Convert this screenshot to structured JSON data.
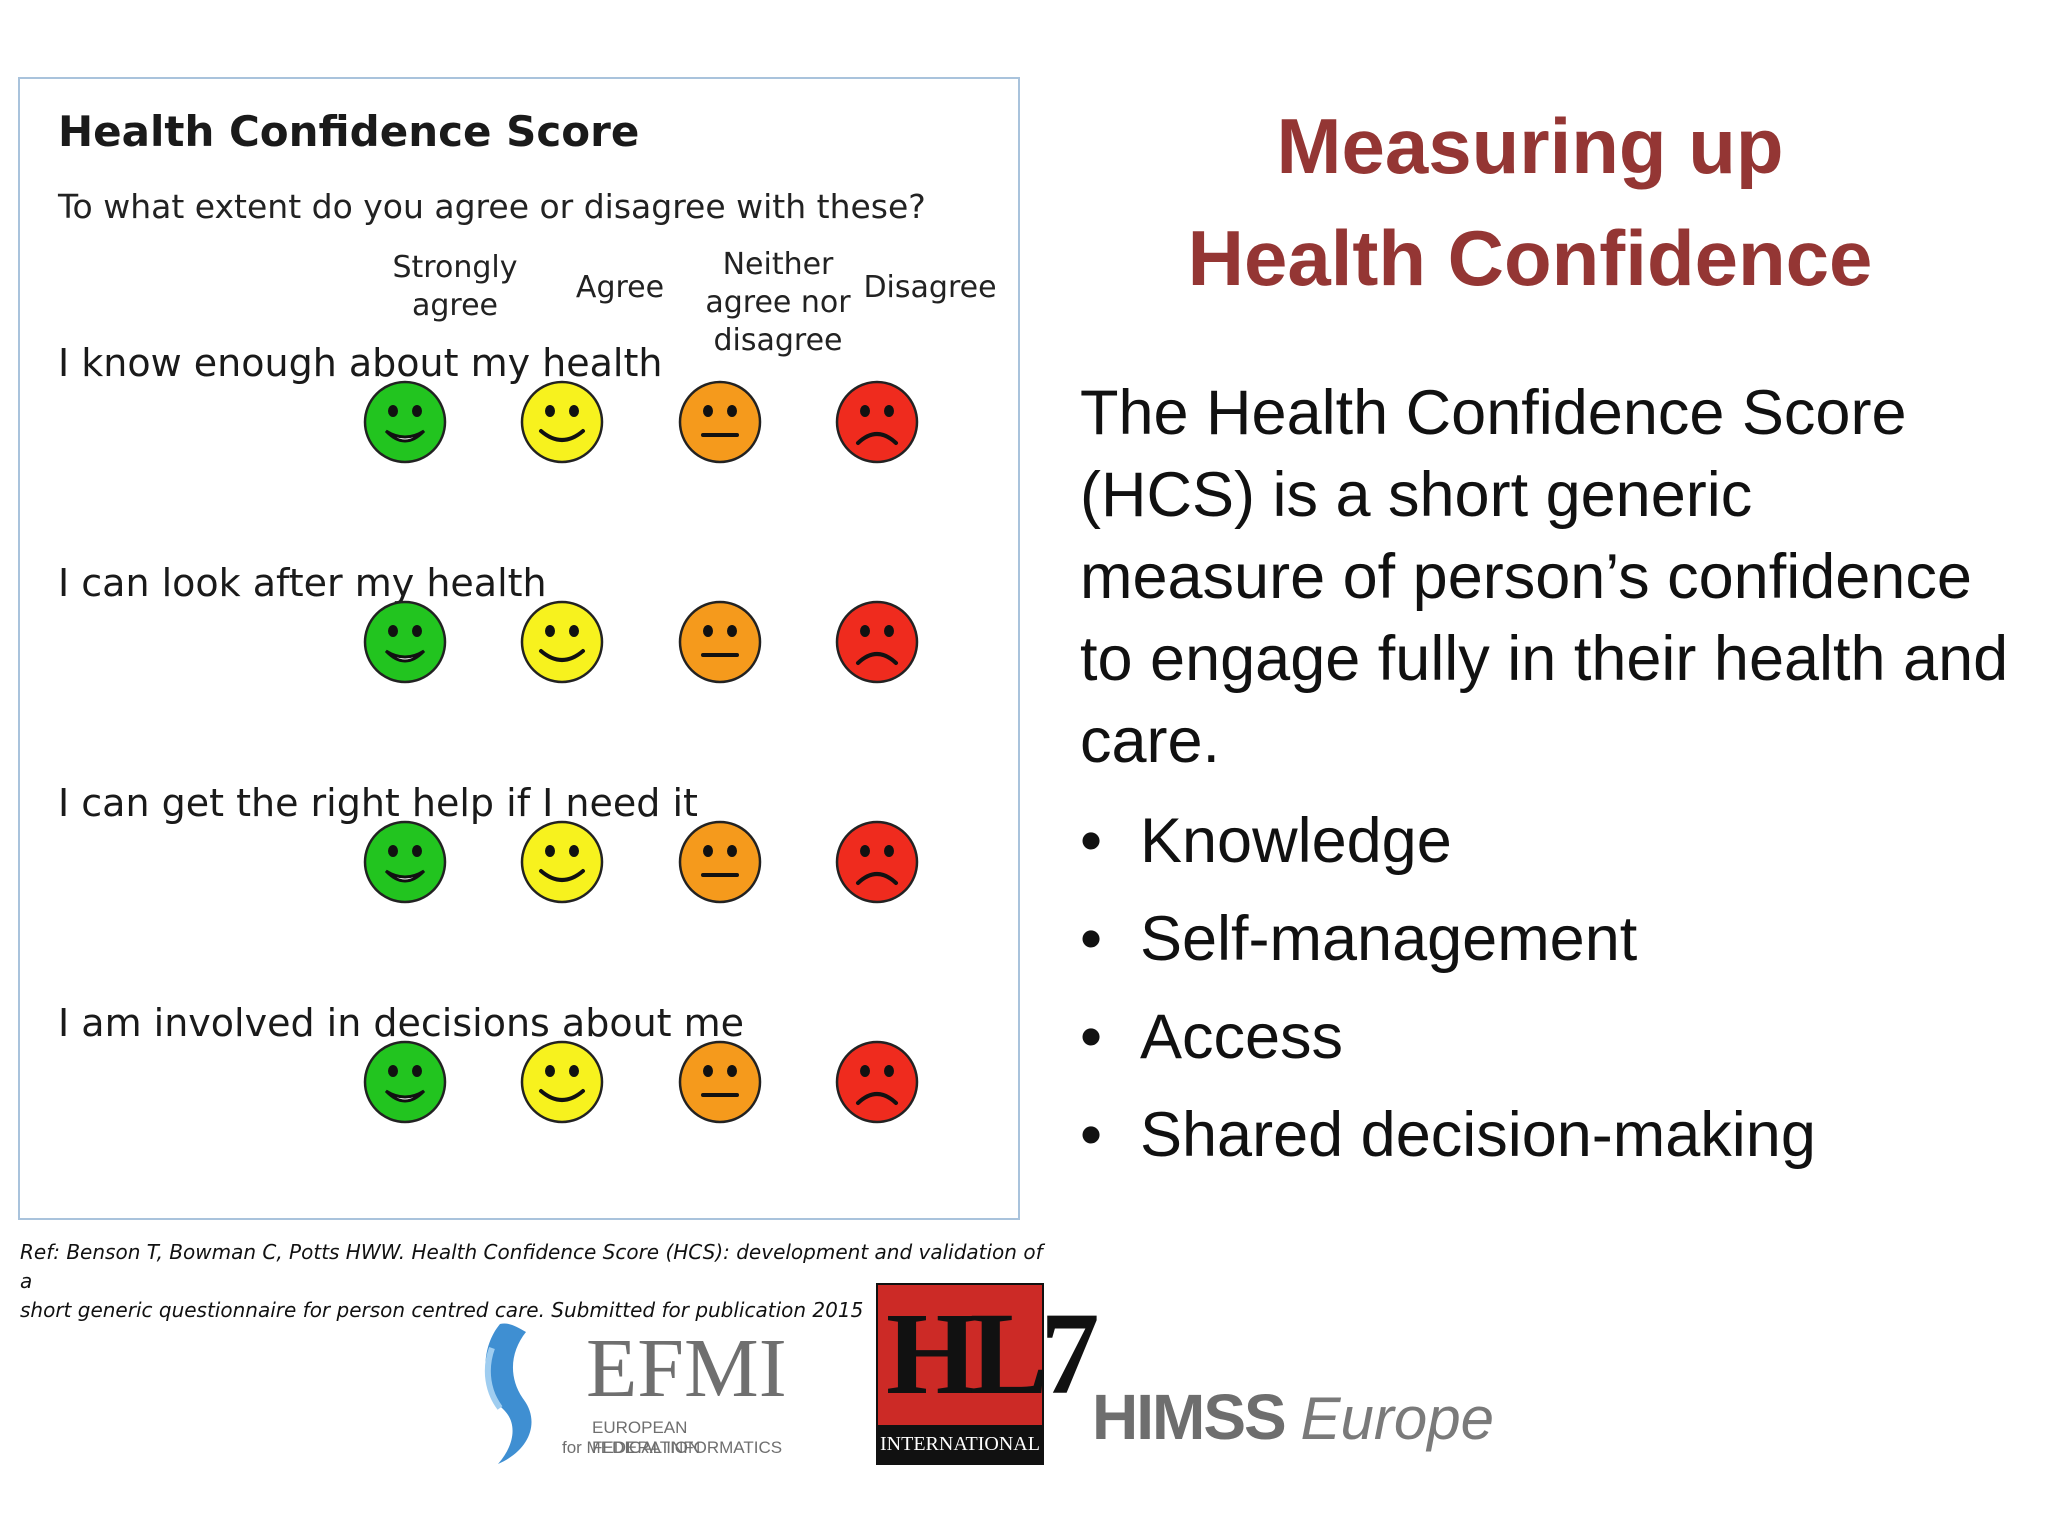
{
  "panel": {
    "title": "Health Confidence Score",
    "question": "To what extent do you agree or disagree with these?",
    "columns": [
      {
        "line1": "Strongly",
        "line2": "agree",
        "line3": ""
      },
      {
        "line1": "Agree",
        "line2": "",
        "line3": ""
      },
      {
        "line1": "Neither",
        "line2": "agree nor",
        "line3": "disagree"
      },
      {
        "line1": "Disagree",
        "line2": "",
        "line3": ""
      }
    ],
    "statements": [
      "I know enough about my health",
      "I can look after my health",
      "I can get the right help if I need it",
      "I am involved in decisions about me"
    ],
    "face_colors": [
      "#22c41f",
      "#f7f21e",
      "#f59a1c",
      "#ef2b1e"
    ],
    "face_icons": [
      "very-happy-face-icon",
      "happy-face-icon",
      "neutral-face-icon",
      "sad-face-icon"
    ]
  },
  "reference": {
    "line1": "Ref: Benson T, Bowman C, Potts HWW. Health Confidence Score (HCS): development and validation of a",
    "line2": "short generic questionnaire for person centred care. Submitted for publication 2015"
  },
  "heading": {
    "line1": "Measuring up",
    "line2": "Health Confidence"
  },
  "description": "The Health Confidence Score (HCS) is a short generic measure of person’s confidence to engage fully in their health and care.",
  "bullets": [
    "Knowledge",
    "Self-management",
    "Access",
    "Shared decision-making"
  ],
  "logos": {
    "efmi": {
      "name": "EFMI",
      "sub1": "EUROPEAN FEDERATION",
      "sub2": "for MEDICAL INFORMATICS"
    },
    "hl7": {
      "letters": "HL7",
      "sub": "INTERNATIONAL"
    },
    "himss": {
      "name": "HIMSS",
      "region": "Europe"
    }
  },
  "colors": {
    "heading": "#943634",
    "panel_border": "#a9c3dc"
  }
}
